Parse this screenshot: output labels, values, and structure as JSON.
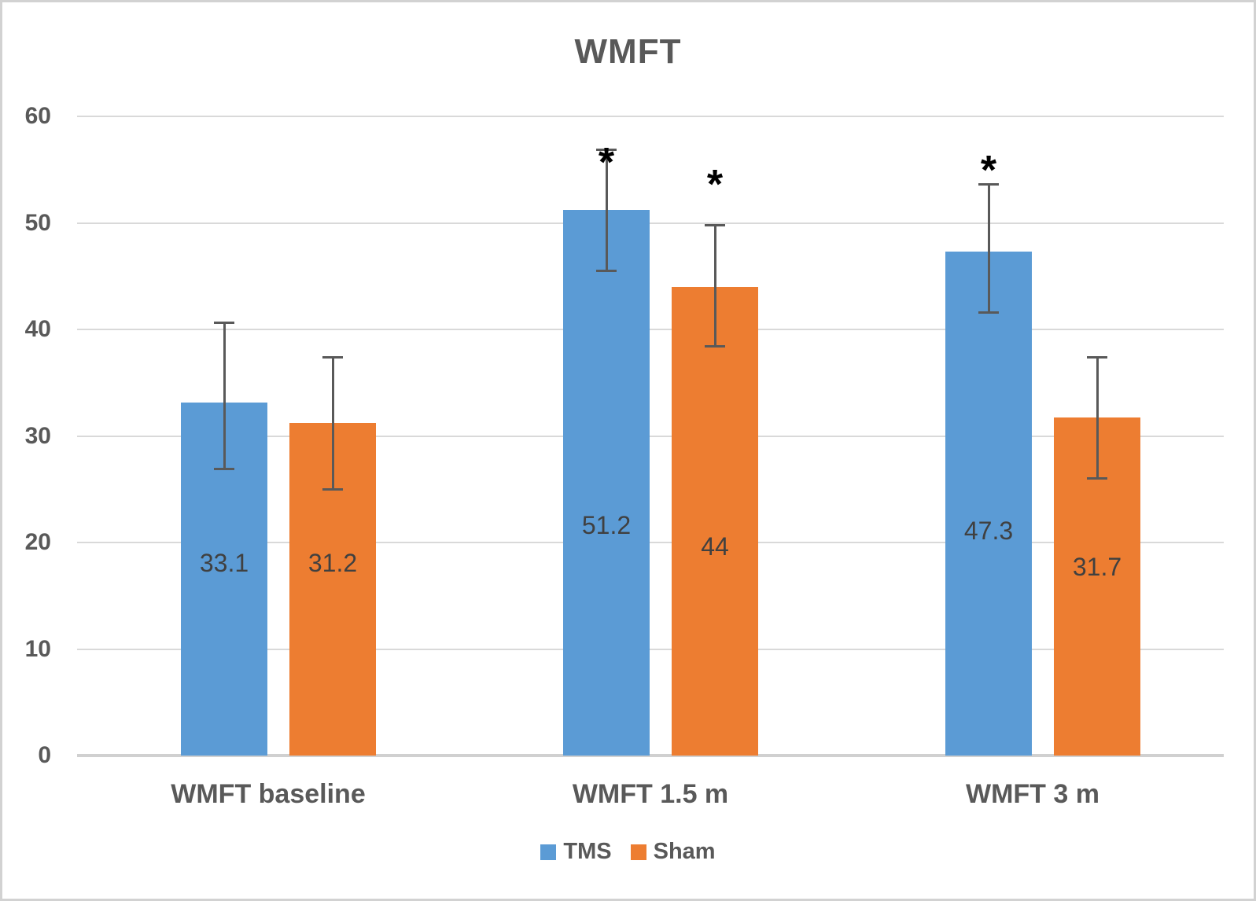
{
  "chart_data": {
    "type": "bar",
    "title": "WMFT",
    "categories": [
      "WMFT baseline",
      "WMFT 1.5 m",
      "WMFT 3 m"
    ],
    "series": [
      {
        "name": "TMS",
        "color": "#5B9BD5",
        "values": [
          33.1,
          51.2,
          47.3
        ],
        "value_labels": [
          "33.1",
          "51.2",
          "47.3"
        ],
        "error_low": [
          26.9,
          45.5,
          41.6
        ],
        "error_high": [
          40.6,
          56.9,
          53.6
        ],
        "significance": [
          false,
          true,
          true
        ],
        "star_y_hint": [
          null,
          56.5,
          55.8
        ],
        "label_y_hint": [
          18.1,
          21.6,
          21.1
        ]
      },
      {
        "name": "Sham",
        "color": "#ED7D31",
        "values": [
          31.2,
          44,
          31.7
        ],
        "value_labels": [
          "31.2",
          "44",
          "31.7"
        ],
        "error_low": [
          25.0,
          38.4,
          26.0
        ],
        "error_high": [
          37.4,
          49.8,
          37.4
        ],
        "significance": [
          false,
          true,
          false
        ],
        "star_y_hint": [
          null,
          54.5,
          null
        ],
        "label_y_hint": [
          18.1,
          19.6,
          17.7
        ]
      }
    ],
    "significance_marker": "*",
    "ylim": [
      0,
      60
    ],
    "yticks": [
      0,
      10,
      20,
      30,
      40,
      50,
      60
    ],
    "xlabel": "",
    "ylabel": "",
    "grid": true,
    "legend_position": "bottom",
    "data_labels": true,
    "error_bars": true,
    "colors": {
      "grid": "#D9D9D9",
      "axis": "#D0D0D0",
      "error_bar": "#595959",
      "text": "#595959",
      "data_label": "#404040",
      "star": "#000000"
    }
  }
}
